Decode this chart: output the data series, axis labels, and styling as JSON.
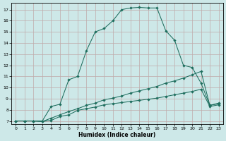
{
  "xlabel": "Humidex (Indice chaleur)",
  "background_color": "#cde8e8",
  "grid_color": "#c0aaaa",
  "line_color": "#1e6e5e",
  "xlim_min": -0.5,
  "xlim_max": 23.5,
  "ylim_min": 6.7,
  "ylim_max": 17.6,
  "yticks": [
    7,
    8,
    9,
    10,
    11,
    12,
    13,
    14,
    15,
    16,
    17
  ],
  "xticks": [
    0,
    1,
    2,
    3,
    4,
    5,
    6,
    7,
    8,
    9,
    10,
    11,
    12,
    13,
    14,
    15,
    16,
    17,
    18,
    19,
    20,
    21,
    22,
    23
  ],
  "line1_x": [
    0,
    1,
    2,
    3,
    4,
    5,
    6,
    7,
    8,
    9,
    10,
    11,
    12,
    13,
    14,
    15,
    16,
    17,
    18,
    19,
    20,
    21,
    22,
    23
  ],
  "line1_y": [
    7.0,
    7.0,
    7.0,
    6.95,
    7.05,
    7.4,
    7.55,
    7.95,
    8.1,
    8.25,
    8.45,
    8.55,
    8.65,
    8.75,
    8.85,
    8.95,
    9.05,
    9.2,
    9.35,
    9.5,
    9.65,
    9.85,
    8.3,
    8.45
  ],
  "line2_x": [
    0,
    1,
    2,
    3,
    4,
    5,
    6,
    7,
    8,
    9,
    10,
    11,
    12,
    13,
    14,
    15,
    16,
    17,
    18,
    19,
    20,
    21,
    22,
    23
  ],
  "line2_y": [
    7.0,
    7.0,
    7.0,
    6.95,
    7.25,
    7.55,
    7.85,
    8.1,
    8.4,
    8.6,
    8.9,
    9.05,
    9.25,
    9.5,
    9.7,
    9.9,
    10.1,
    10.4,
    10.6,
    10.85,
    11.15,
    11.45,
    8.4,
    8.6
  ],
  "line3_x": [
    0,
    1,
    2,
    3,
    4,
    5,
    6,
    7,
    8,
    9,
    10,
    11,
    12,
    13,
    14,
    15,
    16,
    17,
    18,
    19,
    20,
    21,
    22,
    23
  ],
  "line3_y": [
    7.0,
    7.0,
    7.0,
    7.0,
    8.3,
    8.5,
    10.7,
    11.0,
    13.3,
    15.0,
    15.3,
    16.0,
    17.0,
    17.15,
    17.2,
    17.15,
    17.15,
    15.1,
    14.25,
    12.0,
    11.8,
    10.4,
    8.4,
    8.55
  ]
}
